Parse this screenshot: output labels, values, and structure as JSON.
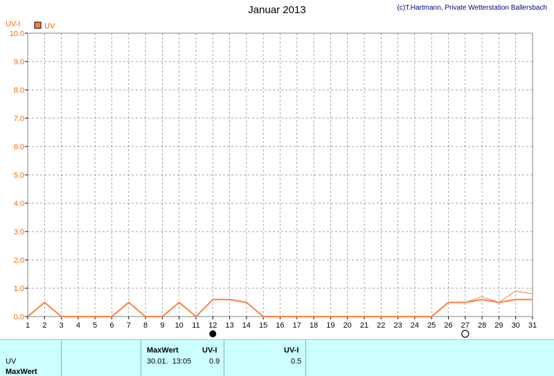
{
  "header": {
    "title": "Januar 2013",
    "credit": "(c)T.Hartmann, Private Wetterstation Ballersbach"
  },
  "chart_data": {
    "type": "line",
    "ylabel": "UV-I",
    "legend": [
      "UV"
    ],
    "xlim": [
      1,
      31
    ],
    "ylim": [
      0,
      10
    ],
    "x_ticks": [
      "1",
      "2",
      "3",
      "4",
      "5",
      "6",
      "7",
      "8",
      "9",
      "10",
      "11",
      "12",
      "13",
      "14",
      "15",
      "16",
      "17",
      "18",
      "19",
      "20",
      "21",
      "22",
      "23",
      "24",
      "25",
      "26",
      "27",
      "28",
      "29",
      "30",
      "31"
    ],
    "y_ticks": [
      "0.0",
      "1.0",
      "2.0",
      "3.0",
      "4.0",
      "5.0",
      "6.0",
      "7.0",
      "8.0",
      "9.0",
      "10.0"
    ],
    "grid": true,
    "colors": {
      "series_main": "#ff7f3f",
      "series_max": "#ff7f3f",
      "grid": "#808080",
      "axis_labels": "#ff6600",
      "ylabel": "#ff6600"
    },
    "markers": [
      {
        "day": 12,
        "type": "new-moon"
      },
      {
        "day": 27,
        "type": "full-moon"
      }
    ],
    "series": [
      {
        "name": "UV",
        "x": [
          1,
          2,
          3,
          4,
          5,
          6,
          7,
          8,
          9,
          10,
          11,
          12,
          13,
          14,
          15,
          16,
          17,
          18,
          19,
          20,
          21,
          22,
          23,
          24,
          25,
          26,
          27,
          28,
          29,
          30,
          31
        ],
        "values": [
          0,
          0.5,
          0,
          0,
          0,
          0,
          0.5,
          0,
          0,
          0.5,
          0,
          0.6,
          0.6,
          0.5,
          0,
          0,
          0,
          0,
          0,
          0,
          0,
          0,
          0,
          0,
          0,
          0.5,
          0.5,
          0.6,
          0.5,
          0.6,
          0.6
        ]
      },
      {
        "name": "MaxWert",
        "x": [
          1,
          2,
          3,
          4,
          5,
          6,
          7,
          8,
          9,
          10,
          11,
          12,
          13,
          14,
          15,
          16,
          17,
          18,
          19,
          20,
          21,
          22,
          23,
          24,
          25,
          26,
          27,
          28,
          29,
          30,
          31
        ],
        "values": [
          0,
          0.5,
          0,
          0,
          0,
          0,
          0.5,
          0,
          0,
          0.5,
          0,
          0.6,
          0.6,
          0.5,
          0,
          0,
          0,
          0,
          0,
          0,
          0,
          0,
          0,
          0,
          0,
          0.5,
          0.5,
          0.7,
          0.5,
          0.9,
          0.8
        ]
      }
    ]
  },
  "table": {
    "rows": [
      "UV",
      "MaxWert"
    ],
    "max_header": "MaxWert",
    "max_unit": "UV-I",
    "max_date": "30.01.  13:05",
    "max_value": "0.9",
    "avg_unit": "UV-I",
    "avg_value": "0.5"
  }
}
